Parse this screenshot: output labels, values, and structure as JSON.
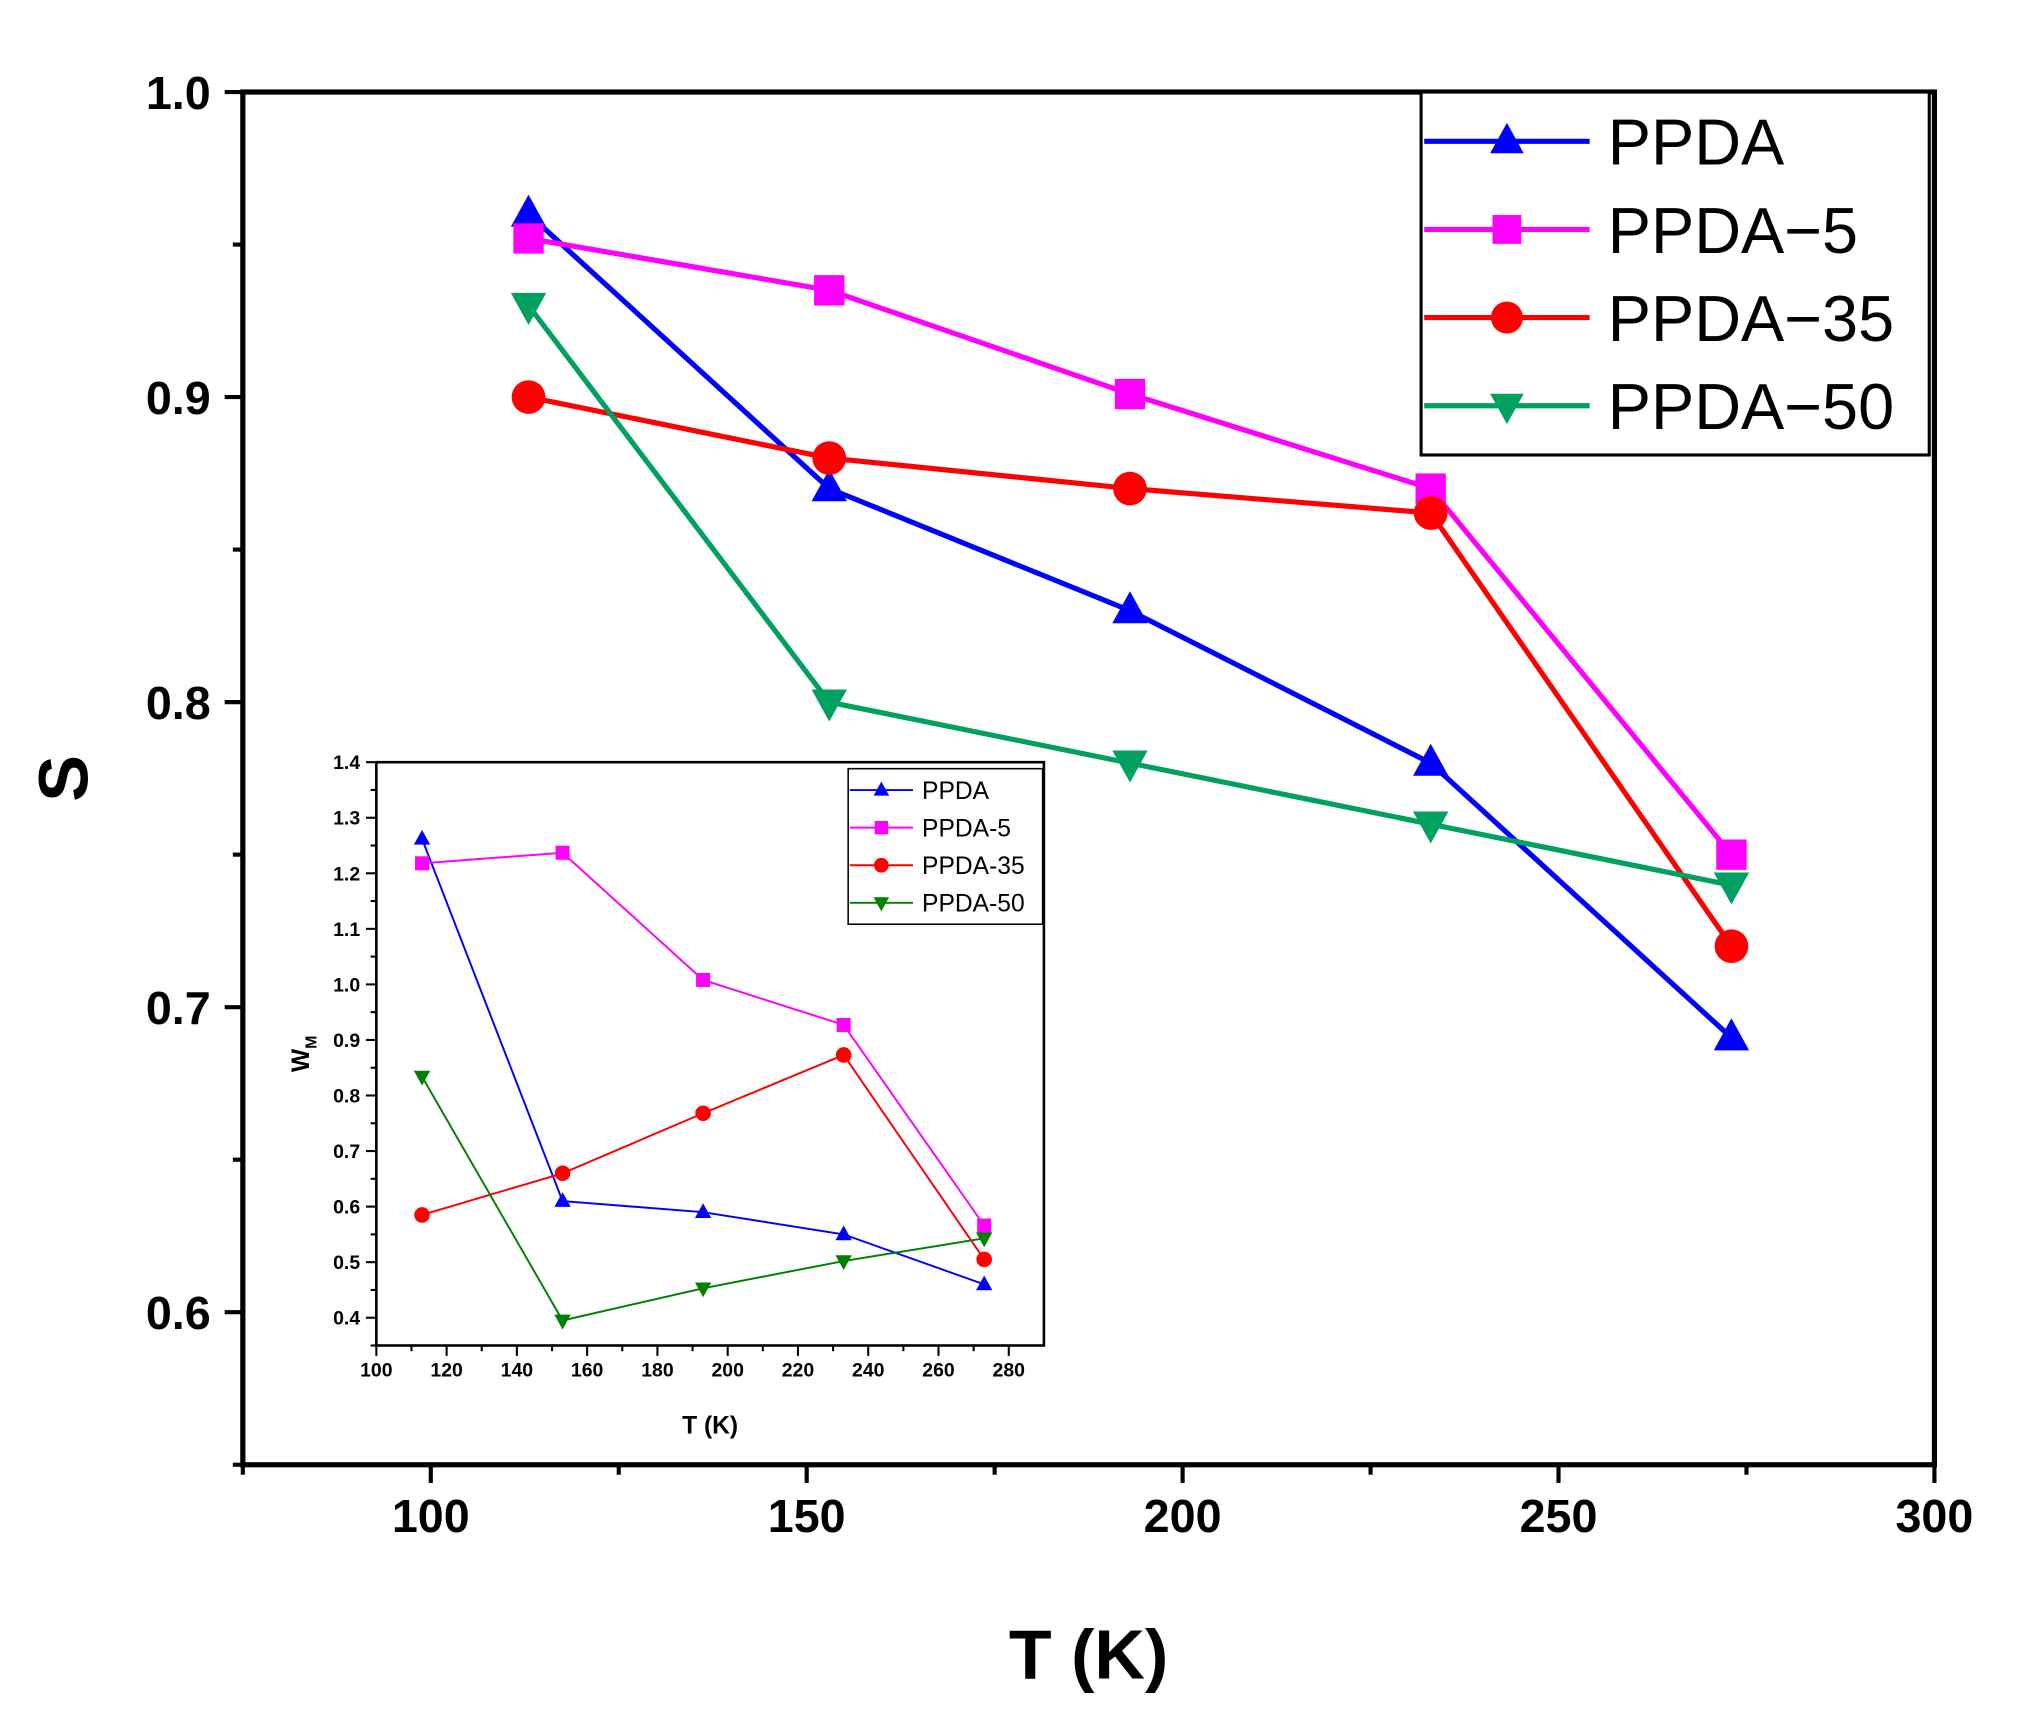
{
  "chart_data": [
    {
      "type": "line",
      "title": "",
      "xlabel": "T (K)",
      "ylabel": "S",
      "xlim": [
        75,
        300
      ],
      "ylim": [
        0.55,
        1.0
      ],
      "xticks": [
        "100",
        "150",
        "200",
        "250",
        "300"
      ],
      "xtick_values": [
        100,
        150,
        200,
        250,
        300
      ],
      "yticks": [
        "0.6",
        "0.7",
        "0.8",
        "0.9",
        "1.0"
      ],
      "ytick_values": [
        0.6,
        0.7,
        0.8,
        0.9,
        1.0
      ],
      "grid": false,
      "legend_position": "top-right",
      "x": [
        113,
        153,
        193,
        233,
        273
      ],
      "series": [
        {
          "name": "PPDA",
          "color": "#0000ff",
          "marker": "triangle-up",
          "values": [
            0.96,
            0.87,
            0.83,
            0.78,
            0.69
          ]
        },
        {
          "name": "PPDA−5",
          "color": "#ff00ff",
          "marker": "square",
          "values": [
            0.952,
            0.935,
            0.901,
            0.87,
            0.75
          ]
        },
        {
          "name": "PPDA−35",
          "color": "#ff0000",
          "marker": "circle",
          "values": [
            0.9,
            0.88,
            0.87,
            0.862,
            0.72
          ]
        },
        {
          "name": "PPDA−50",
          "color": "#00a060",
          "marker": "triangle-down",
          "values": [
            0.93,
            0.8,
            0.78,
            0.76,
            0.74
          ]
        }
      ]
    },
    {
      "type": "line",
      "title": "",
      "xlabel": "T (K)",
      "ylabel": "W",
      "ylabel_sub": "M",
      "xlim": [
        100,
        290
      ],
      "ylim": [
        0.35,
        1.4
      ],
      "xticks": [
        "100",
        "120",
        "140",
        "160",
        "180",
        "200",
        "220",
        "240",
        "260",
        "280"
      ],
      "xtick_values": [
        100,
        120,
        140,
        160,
        180,
        200,
        220,
        240,
        260,
        280
      ],
      "yticks": [
        "0.4",
        "0.5",
        "0.6",
        "0.7",
        "0.8",
        "0.9",
        "1.0",
        "1.1",
        "1.2",
        "1.3",
        "1.4"
      ],
      "ytick_values": [
        0.4,
        0.5,
        0.6,
        0.7,
        0.8,
        0.9,
        1.0,
        1.1,
        1.2,
        1.3,
        1.4
      ],
      "grid": false,
      "legend_position": "top-right",
      "x": [
        113,
        153,
        193,
        233,
        273
      ],
      "series": [
        {
          "name": "PPDA",
          "color": "#0000ff",
          "marker": "triangle-up",
          "values": [
            1.262,
            0.61,
            0.59,
            0.55,
            0.46
          ]
        },
        {
          "name": "PPDA-5",
          "color": "#ff00ff",
          "marker": "square",
          "values": [
            1.218,
            1.237,
            1.008,
            0.927,
            0.566
          ]
        },
        {
          "name": "PPDA-35",
          "color": "#ff0000",
          "marker": "circle",
          "values": [
            0.585,
            0.66,
            0.768,
            0.873,
            0.505
          ]
        },
        {
          "name": "PPDA-50",
          "color": "#008000",
          "marker": "triangle-down",
          "values": [
            0.834,
            0.395,
            0.453,
            0.502,
            0.543
          ]
        }
      ]
    }
  ]
}
